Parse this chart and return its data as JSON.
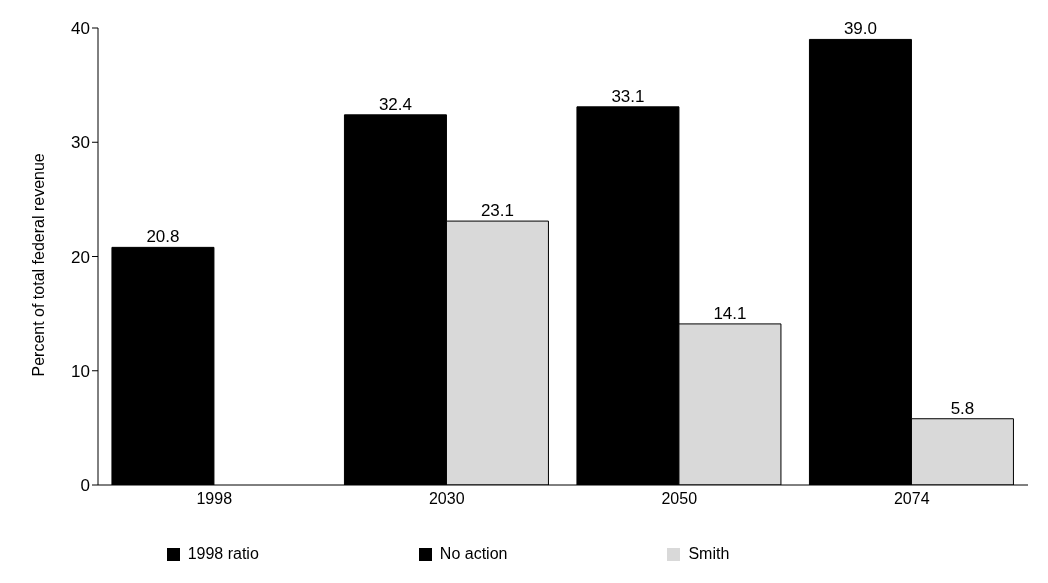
{
  "chart_data": {
    "type": "bar",
    "ylabel": "Percent of total federal revenue",
    "categories": [
      "1998",
      "2030",
      "2050",
      "2074"
    ],
    "series": [
      {
        "name": "1998 ratio",
        "color": "#000000",
        "values": [
          20.8,
          null,
          null,
          null
        ],
        "value_labels": [
          "20.8",
          null,
          null,
          null
        ]
      },
      {
        "name": "No action",
        "color": "#000000",
        "values": [
          null,
          32.4,
          33.1,
          39.0
        ],
        "value_labels": [
          null,
          "32.4",
          "33.1",
          "39.0"
        ]
      },
      {
        "name": "Smith",
        "color": "#d9d9d9",
        "values": [
          null,
          23.1,
          14.1,
          5.8
        ],
        "value_labels": [
          null,
          "23.1",
          "14.1",
          "5.8"
        ]
      }
    ],
    "ylim": [
      0,
      40
    ],
    "yticks": [
      0,
      10,
      20,
      30,
      40
    ],
    "grid": false,
    "legend": "bottom"
  }
}
